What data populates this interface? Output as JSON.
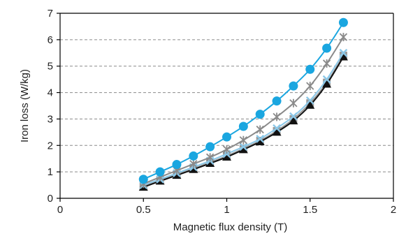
{
  "chart_data": {
    "type": "line",
    "xlabel": "Magnetic flux density (T)",
    "ylabel": "Iron loss (W/kg)",
    "xlim": [
      0,
      2
    ],
    "ylim": [
      0,
      7
    ],
    "xticks": [
      0,
      0.5,
      1,
      1.5,
      2
    ],
    "xtick_labels": [
      "0",
      "0.5",
      "1",
      "1.5",
      "2"
    ],
    "yticks": [
      0,
      1,
      2,
      3,
      4,
      5,
      6,
      7
    ],
    "ytick_labels": [
      "0",
      "1",
      "2",
      "3",
      "4",
      "5",
      "6",
      "7"
    ],
    "grid": "horizontal dashed",
    "legend": "none",
    "x": [
      0.5,
      0.6,
      0.7,
      0.8,
      0.9,
      1.0,
      1.1,
      1.2,
      1.3,
      1.4,
      1.5,
      1.6,
      1.7
    ],
    "series": [
      {
        "marker": "circle",
        "color": "#1aa6e0",
        "values": [
          0.72,
          1.0,
          1.28,
          1.6,
          1.95,
          2.32,
          2.72,
          3.18,
          3.68,
          4.25,
          4.88,
          5.68,
          6.65
        ]
      },
      {
        "marker": "star",
        "color": "#8a8a8a",
        "values": [
          0.55,
          0.8,
          1.05,
          1.3,
          1.55,
          1.85,
          2.2,
          2.6,
          3.08,
          3.6,
          4.25,
          5.1,
          6.1
        ]
      },
      {
        "marker": "x",
        "color": "#8cc8e8",
        "values": [
          0.5,
          0.72,
          0.95,
          1.18,
          1.42,
          1.68,
          1.95,
          2.25,
          2.65,
          3.1,
          3.7,
          4.5,
          5.5
        ]
      },
      {
        "marker": "square",
        "color": "#999999",
        "values": [
          0.45,
          0.68,
          0.9,
          1.12,
          1.36,
          1.6,
          1.88,
          2.18,
          2.55,
          3.0,
          3.6,
          4.38,
          5.4
        ]
      },
      {
        "marker": "triangle",
        "color": "#111111",
        "values": [
          0.42,
          0.65,
          0.87,
          1.09,
          1.32,
          1.56,
          1.84,
          2.14,
          2.5,
          2.93,
          3.52,
          4.32,
          5.35
        ]
      }
    ]
  }
}
